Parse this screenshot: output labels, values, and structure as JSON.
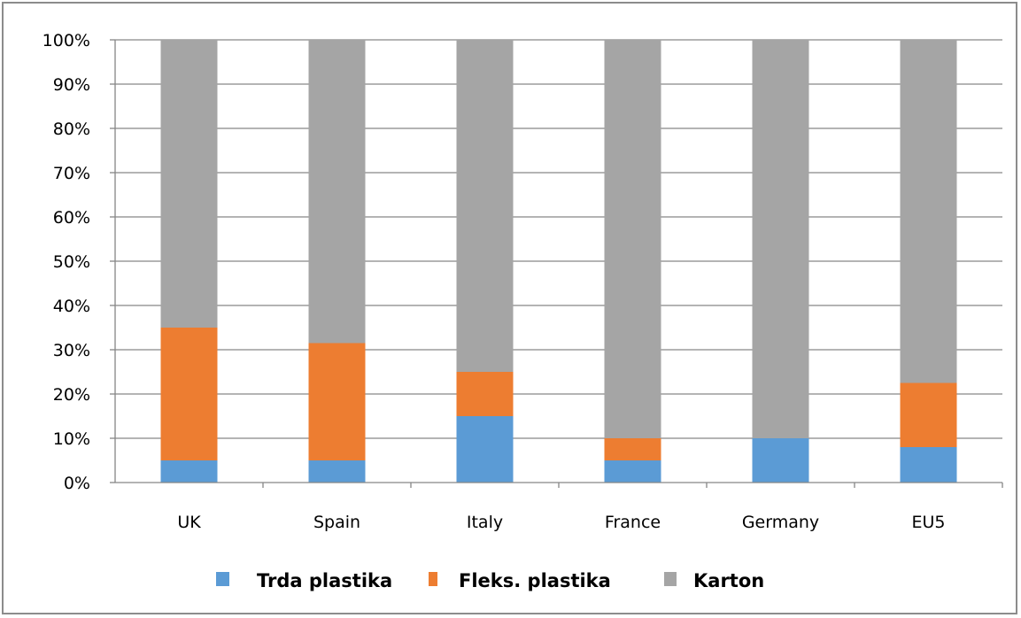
{
  "chart_data": {
    "type": "bar",
    "stacked": true,
    "percent_stacked": true,
    "title": "",
    "xlabel": "",
    "ylabel": "",
    "ylim": [
      0,
      100
    ],
    "yticks": [
      "0%",
      "10%",
      "20%",
      "30%",
      "40%",
      "50%",
      "60%",
      "70%",
      "80%",
      "90%",
      "100%"
    ],
    "grid": true,
    "legend_position": "bottom",
    "categories": [
      "UK",
      "Spain",
      "Italy",
      "France",
      "Germany",
      "EU5"
    ],
    "series": [
      {
        "name": "Trda plastika",
        "color": "#5b9bd5",
        "values": [
          5,
          5,
          15,
          5,
          10,
          8
        ]
      },
      {
        "name": "Fleks. plastika",
        "color": "#ed7d31",
        "values": [
          30,
          26.5,
          10,
          5,
          0,
          14.5
        ]
      },
      {
        "name": "Karton",
        "color": "#a5a5a5",
        "values": [
          65,
          68.5,
          75,
          90,
          90,
          77.5
        ]
      }
    ]
  }
}
